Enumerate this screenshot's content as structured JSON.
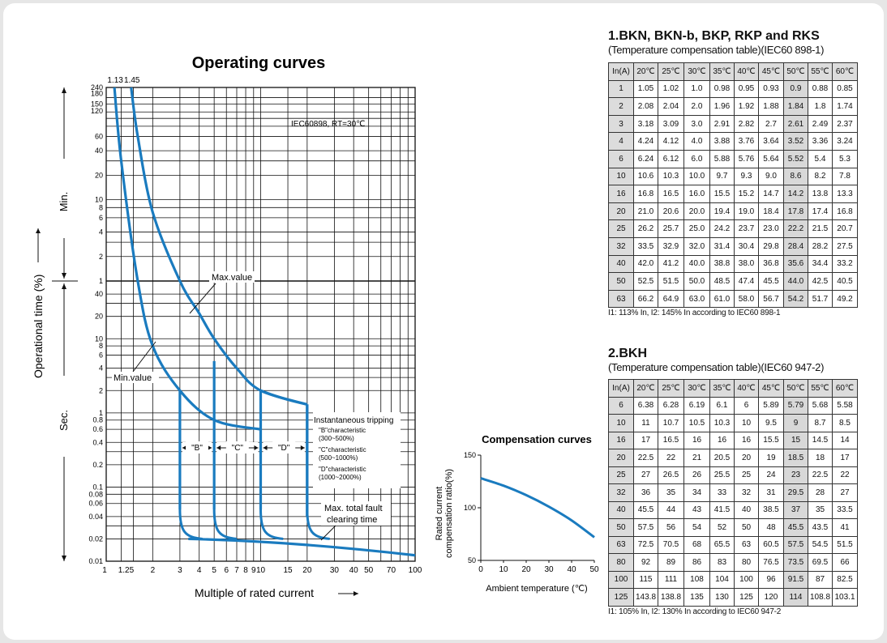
{
  "operating": {
    "title": "Operating curves",
    "standard_note": "IEC60898,  RT=30℃",
    "x_label": "Multiple of rated current",
    "y_label": "Operational time (%)",
    "y_label_min": "Min.",
    "y_label_sec": "Sec.",
    "top_ticks": [
      "1.13",
      "1.45"
    ],
    "label_max": "Max.value",
    "label_min": "Min.value",
    "label_fault_1": "Max. total fault",
    "label_fault_2": "clearing time",
    "inst_title": "Instantaneous tripping",
    "inst_lines": [
      "\"B\"characteristic",
      "(300~500%)",
      "\"C\"characteristic",
      "(500~1000%)",
      "\"D\"characteristic",
      "(1000~2000%)"
    ],
    "band_labels": [
      "\"B\"",
      "\"C\"",
      "\"D\""
    ],
    "x_tick_labels": [
      "1",
      "1.25",
      "2",
      "3",
      "4",
      "5",
      "6",
      "7",
      "8",
      "9",
      "10",
      "15",
      "20",
      "30",
      "40",
      "50",
      "70",
      "100"
    ],
    "y_min_tick_labels": [
      "240",
      "180",
      "150",
      "120",
      "60",
      "40",
      "20",
      "10",
      "8",
      "6",
      "4",
      "2",
      "1"
    ],
    "y_sec_tick_labels": [
      "40",
      "20",
      "10",
      "8",
      "6",
      "4",
      "2",
      "1",
      "0.8",
      "0.6",
      "0.4",
      "0.2",
      "0.1",
      "0.08",
      "0.06",
      "0.04",
      "0.02",
      "0.01"
    ]
  },
  "compensation": {
    "title": "Compensation curves",
    "x_label": "Ambient temperature (℃)",
    "y_label_1": "Rated current",
    "y_label_2": "compensation ratio(%)",
    "x_ticks": [
      "0",
      "10",
      "20",
      "30",
      "40",
      "50"
    ],
    "y_ticks": [
      "150",
      "100",
      "50"
    ]
  },
  "table1": {
    "title": "1.BKN, BKN-b, BKP, RKP and RKS",
    "subtitle": "(Temperature compensation table)(IEC60 898-1)",
    "header": [
      "In(A)",
      "20℃",
      "25℃",
      "30℃",
      "35℃",
      "40℃",
      "45℃",
      "50℃",
      "55℃",
      "60℃"
    ],
    "rows": [
      [
        "1",
        "1.05",
        "1.02",
        "1.0",
        "0.98",
        "0.95",
        "0.93",
        "0.9",
        "0.88",
        "0.85"
      ],
      [
        "2",
        "2.08",
        "2.04",
        "2.0",
        "1.96",
        "1.92",
        "1.88",
        "1.84",
        "1.8",
        "1.74"
      ],
      [
        "3",
        "3.18",
        "3.09",
        "3.0",
        "2.91",
        "2.82",
        "2.7",
        "2.61",
        "2.49",
        "2.37"
      ],
      [
        "4",
        "4.24",
        "4.12",
        "4.0",
        "3.88",
        "3.76",
        "3.64",
        "3.52",
        "3.36",
        "3.24"
      ],
      [
        "6",
        "6.24",
        "6.12",
        "6.0",
        "5.88",
        "5.76",
        "5.64",
        "5.52",
        "5.4",
        "5.3"
      ],
      [
        "10",
        "10.6",
        "10.3",
        "10.0",
        "9.7",
        "9.3",
        "9.0",
        "8.6",
        "8.2",
        "7.8"
      ],
      [
        "16",
        "16.8",
        "16.5",
        "16.0",
        "15.5",
        "15.2",
        "14.7",
        "14.2",
        "13.8",
        "13.3"
      ],
      [
        "20",
        "21.0",
        "20.6",
        "20.0",
        "19.4",
        "19.0",
        "18.4",
        "17.8",
        "17.4",
        "16.8"
      ],
      [
        "25",
        "26.2",
        "25.7",
        "25.0",
        "24.2",
        "23.7",
        "23.0",
        "22.2",
        "21.5",
        "20.7"
      ],
      [
        "32",
        "33.5",
        "32.9",
        "32.0",
        "31.4",
        "30.4",
        "29.8",
        "28.4",
        "28.2",
        "27.5"
      ],
      [
        "40",
        "42.0",
        "41.2",
        "40.0",
        "38.8",
        "38.0",
        "36.8",
        "35.6",
        "34.4",
        "33.2"
      ],
      [
        "50",
        "52.5",
        "51.5",
        "50.0",
        "48.5",
        "47.4",
        "45.5",
        "44.0",
        "42.5",
        "40.5"
      ],
      [
        "63",
        "66.2",
        "64.9",
        "63.0",
        "61.0",
        "58.0",
        "56.7",
        "54.2",
        "51.7",
        "49.2"
      ]
    ],
    "note": "I1: 113% In, I2: 145% In according to IEC60 898-1"
  },
  "table2": {
    "title": "2.BKH",
    "subtitle": "(Temperature compensation table)(IEC60 947-2)",
    "header": [
      "In(A)",
      "20℃",
      "25℃",
      "30℃",
      "35℃",
      "40℃",
      "45℃",
      "50℃",
      "55℃",
      "60℃"
    ],
    "rows": [
      [
        "6",
        "6.38",
        "6.28",
        "6.19",
        "6.1",
        "6",
        "5.89",
        "5.79",
        "5.68",
        "5.58"
      ],
      [
        "10",
        "11",
        "10.7",
        "10.5",
        "10.3",
        "10",
        "9.5",
        "9",
        "8.7",
        "8.5"
      ],
      [
        "16",
        "17",
        "16.5",
        "16",
        "16",
        "16",
        "15.5",
        "15",
        "14.5",
        "14"
      ],
      [
        "20",
        "22.5",
        "22",
        "21",
        "20.5",
        "20",
        "19",
        "18.5",
        "18",
        "17"
      ],
      [
        "25",
        "27",
        "26.5",
        "26",
        "25.5",
        "25",
        "24",
        "23",
        "22.5",
        "22"
      ],
      [
        "32",
        "36",
        "35",
        "34",
        "33",
        "32",
        "31",
        "29.5",
        "28",
        "27"
      ],
      [
        "40",
        "45.5",
        "44",
        "43",
        "41.5",
        "40",
        "38.5",
        "37",
        "35",
        "33.5"
      ],
      [
        "50",
        "57.5",
        "56",
        "54",
        "52",
        "50",
        "48",
        "45.5",
        "43.5",
        "41"
      ],
      [
        "63",
        "72.5",
        "70.5",
        "68",
        "65.5",
        "63",
        "60.5",
        "57.5",
        "54.5",
        "51.5"
      ],
      [
        "80",
        "92",
        "89",
        "86",
        "83",
        "80",
        "76.5",
        "73.5",
        "69.5",
        "66"
      ],
      [
        "100",
        "115",
        "111",
        "108",
        "104",
        "100",
        "96",
        "91.5",
        "87",
        "82.5"
      ],
      [
        "125",
        "143.8",
        "138.8",
        "135",
        "130",
        "125",
        "120",
        "114",
        "108.8",
        "103.1"
      ]
    ],
    "note": "I1: 105% In, I2: 130% In according to IEC60 947-2"
  },
  "colors": {
    "curve": "#1a7bbf",
    "grid": "#111111",
    "shade": "#d8d8d8",
    "header": "#dcdcdc"
  },
  "chart_data": [
    {
      "type": "line",
      "title": "Operating curves",
      "xlabel": "Multiple of rated current",
      "ylabel": "Operational time (%)",
      "xscale": "log",
      "yscale": "log",
      "xlim": [
        1,
        100
      ],
      "ylim_seconds": [
        0.01,
        14400
      ],
      "series": [
        {
          "name": "Max.value",
          "x": [
            1.45,
            1.6,
            2,
            3,
            4,
            5,
            7,
            10,
            20
          ],
          "y": [
            14400,
            3600,
            420,
            60,
            22,
            10,
            4,
            2,
            1.3
          ]
        },
        {
          "name": "Min.value",
          "x": [
            1.13,
            1.25,
            1.6,
            2,
            3,
            5,
            10
          ],
          "y": [
            14400,
            1800,
            60,
            8,
            2,
            0.8,
            0.6
          ]
        }
      ],
      "instantaneous_bands": [
        {
          "name": "\"B\"",
          "x": [
            3,
            5
          ]
        },
        {
          "name": "\"C\"",
          "x": [
            5,
            10
          ]
        },
        {
          "name": "\"D\"",
          "x": [
            10,
            20
          ]
        }
      ]
    },
    {
      "type": "line",
      "title": "Compensation curves",
      "xlabel": "Ambient temperature (℃)",
      "ylabel": "Rated current compensation ratio(%)",
      "xlim": [
        0,
        50
      ],
      "ylim": [
        50,
        150
      ],
      "series": [
        {
          "x": [
            0,
            10,
            20,
            30,
            40,
            50
          ],
          "y": [
            128,
            121,
            112,
            101,
            88,
            72
          ]
        }
      ]
    }
  ]
}
